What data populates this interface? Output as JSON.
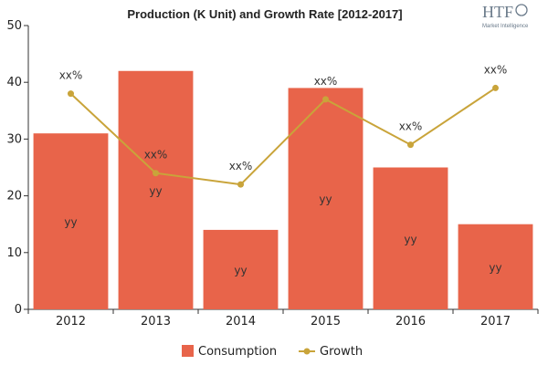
{
  "logo": {
    "mark": "HTF",
    "tagline": "Market Intelligence"
  },
  "chart_data": {
    "type": "bar",
    "title": "Production (K Unit) and Growth Rate [2012-2017]",
    "categories": [
      "2012",
      "2013",
      "2014",
      "2015",
      "2016",
      "2017"
    ],
    "series": [
      {
        "name": "Consumption",
        "type": "bar",
        "values": [
          31,
          42,
          14,
          39,
          25,
          15
        ],
        "data_labels": [
          "yy",
          "yy",
          "yy",
          "yy",
          "yy",
          "yy"
        ],
        "color": "#e8644a"
      },
      {
        "name": "Growth",
        "type": "line",
        "values": [
          38,
          24,
          22,
          37,
          29,
          39
        ],
        "data_labels": [
          "xx%",
          "xx%",
          "xx%",
          "xx%",
          "xx%",
          "xx%"
        ],
        "color": "#c9a43a"
      }
    ],
    "ylim": [
      0,
      50
    ],
    "yticks": [
      "0",
      "10",
      "20",
      "30",
      "40",
      "50"
    ],
    "xlabel": "",
    "ylabel": "",
    "grid": false,
    "legend": "bottom"
  }
}
